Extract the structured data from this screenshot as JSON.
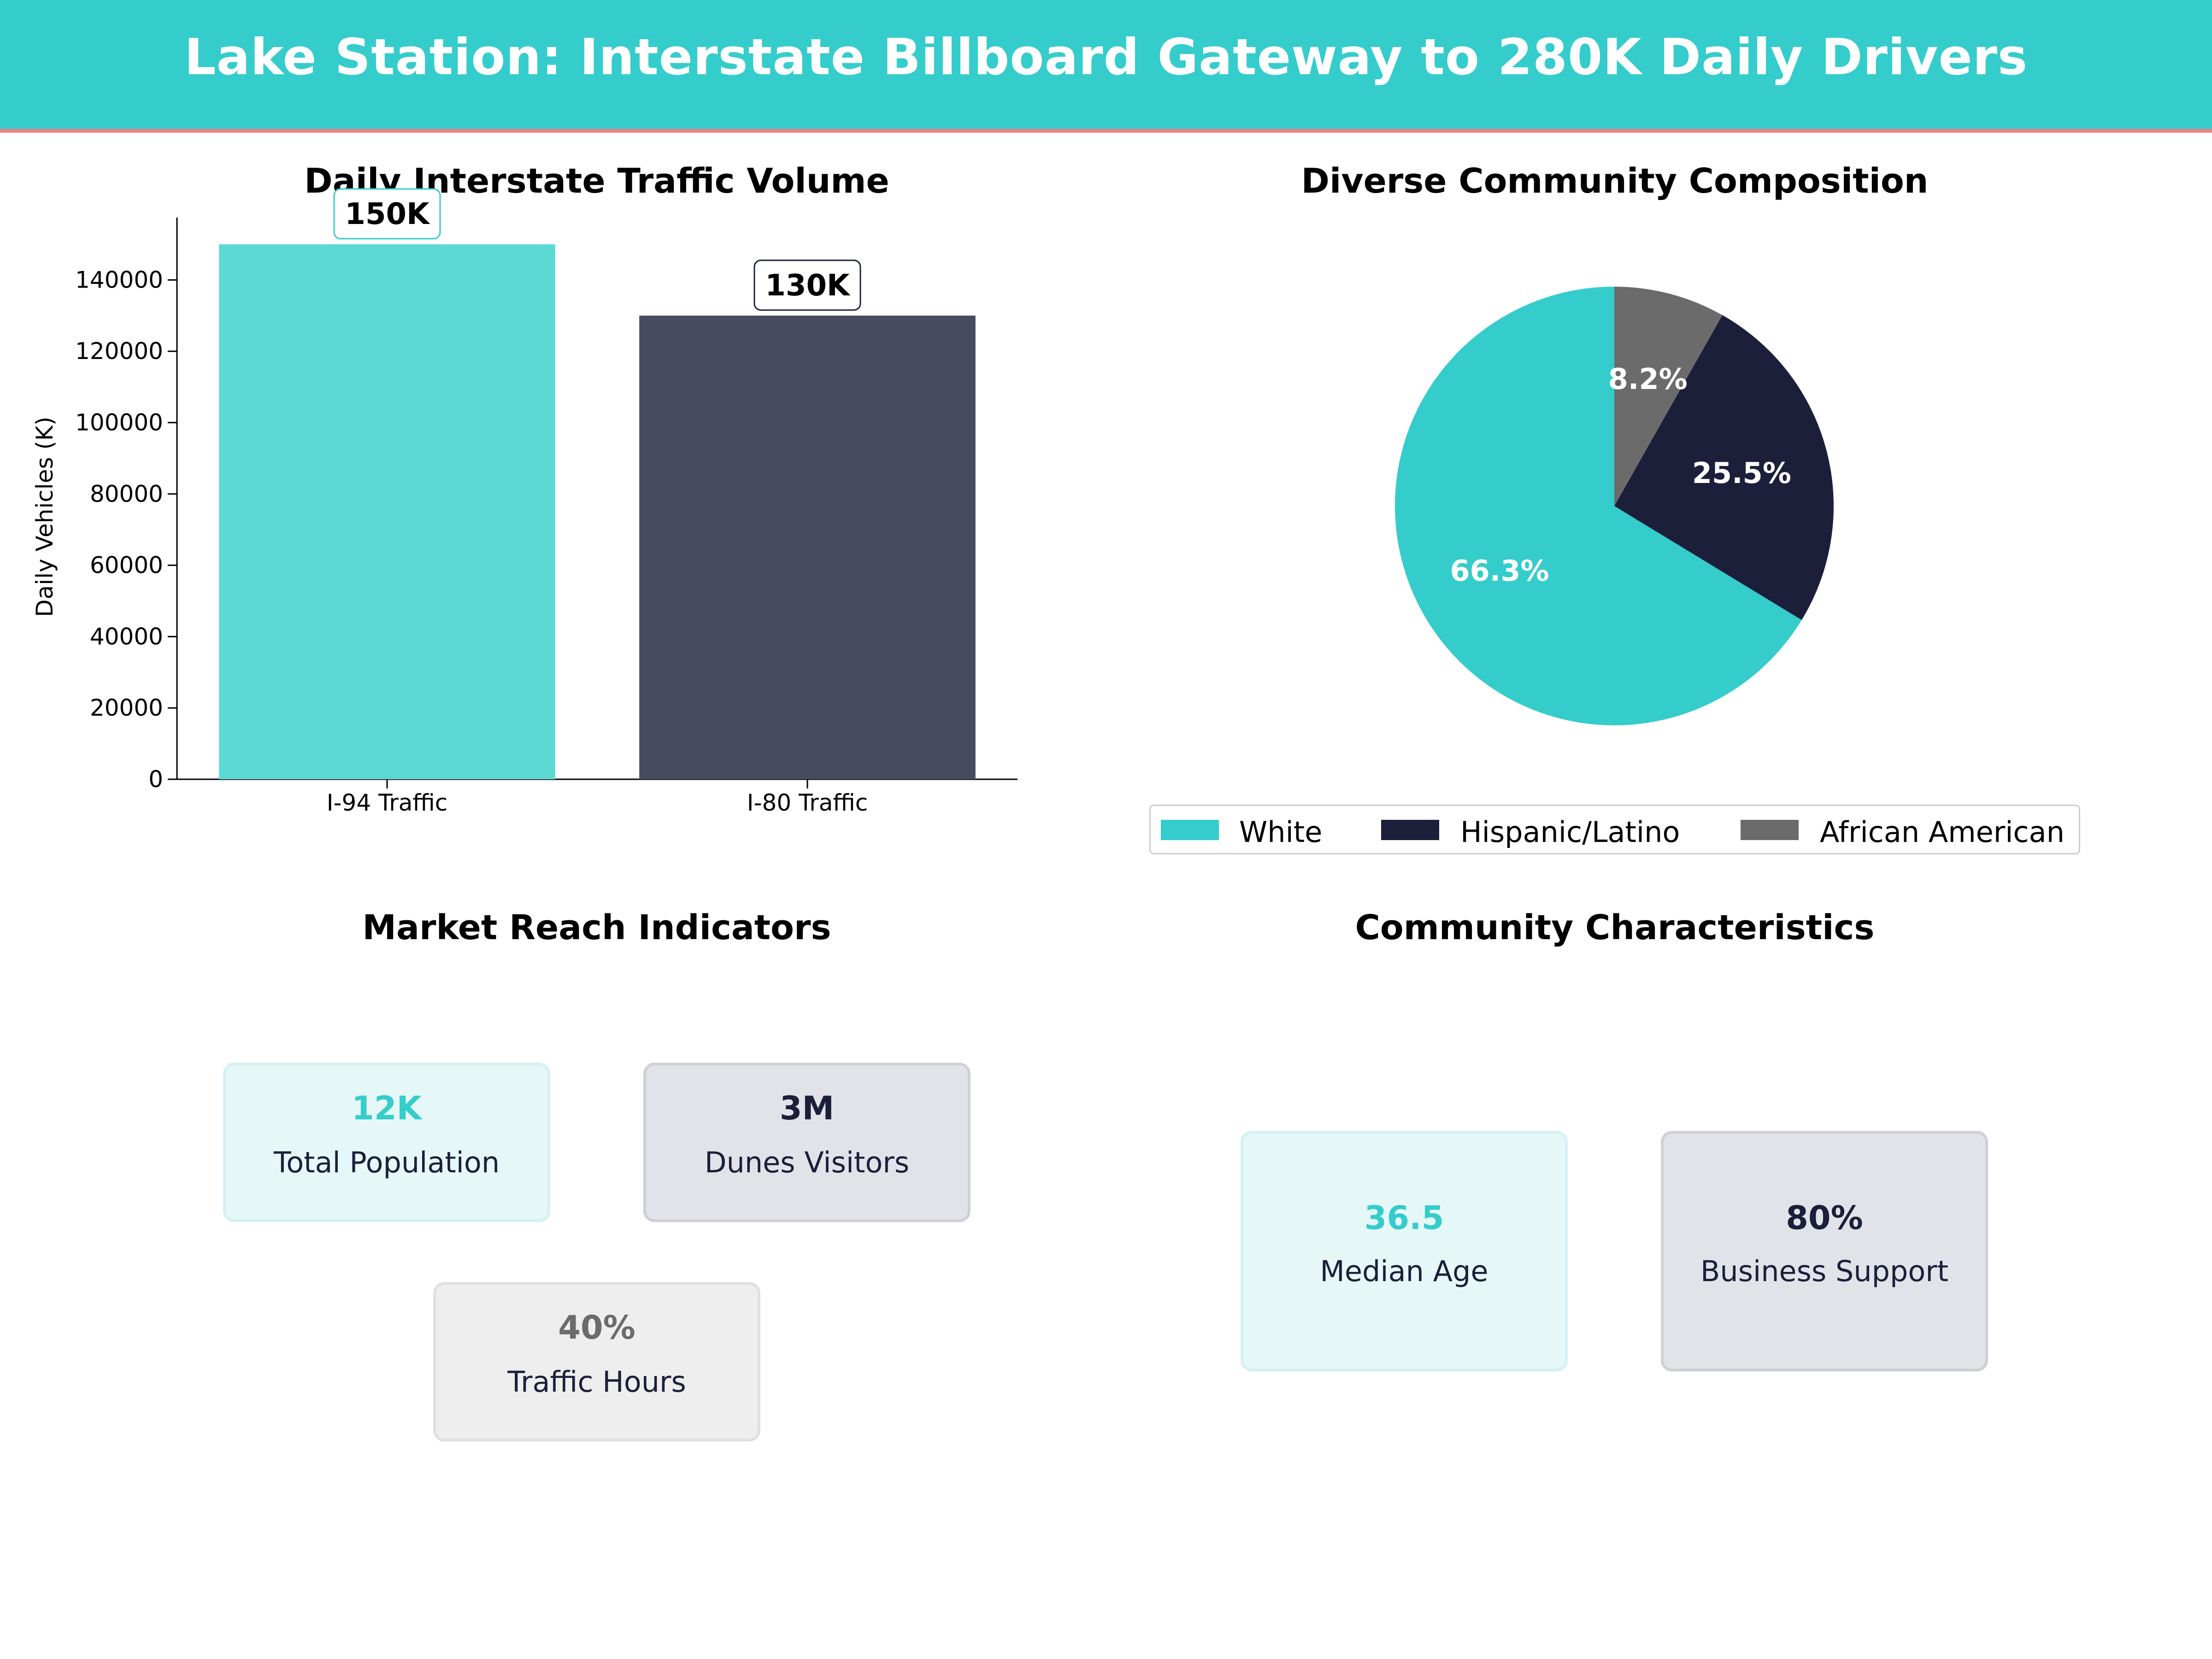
{
  "header": {
    "title": "Lake Station: Interstate Billboard Gateway to 280K Daily Drivers"
  },
  "colors": {
    "header_bg": "#35cccc",
    "header_border": "#f08080",
    "teal": "#35cccc",
    "navy": "#1b1f3a",
    "gray": "#6b6b6b"
  },
  "chart_data": [
    {
      "type": "bar",
      "title": "Daily Interstate Traffic Volume",
      "xlabel": "",
      "ylabel": "Daily Vehicles (K)",
      "categories": [
        "I-94 Traffic",
        "I-80 Traffic"
      ],
      "values": [
        150000,
        130000
      ],
      "data_labels": [
        "150K",
        "130K"
      ],
      "colors": [
        "#5dd9d5",
        "#464b60"
      ],
      "ylim": [
        0,
        157500
      ],
      "yticks": [
        0,
        20000,
        40000,
        60000,
        80000,
        100000,
        120000,
        140000
      ],
      "grid": false
    },
    {
      "type": "pie",
      "title": "Diverse Community Composition",
      "labels": [
        "White",
        "Hispanic/Latino",
        "African American"
      ],
      "values": [
        66.3,
        25.5,
        8.2
      ],
      "value_labels": [
        "66.3%",
        "25.5%",
        "8.2%"
      ],
      "colors": [
        "#35cccc",
        "#1b1f3a",
        "#6b6b6b"
      ],
      "legend_position": "bottom"
    }
  ],
  "market_reach": {
    "title": "Market Reach Indicators",
    "cards": [
      {
        "value": "12K",
        "label": "Total Population"
      },
      {
        "value": "3M",
        "label": "Dunes Visitors"
      },
      {
        "value": "40%",
        "label": "Traffic Hours"
      }
    ]
  },
  "community": {
    "title": "Community Characteristics",
    "cards": [
      {
        "value": "36.5",
        "label": "Median Age"
      },
      {
        "value": "80%",
        "label": "Business Support"
      }
    ]
  }
}
